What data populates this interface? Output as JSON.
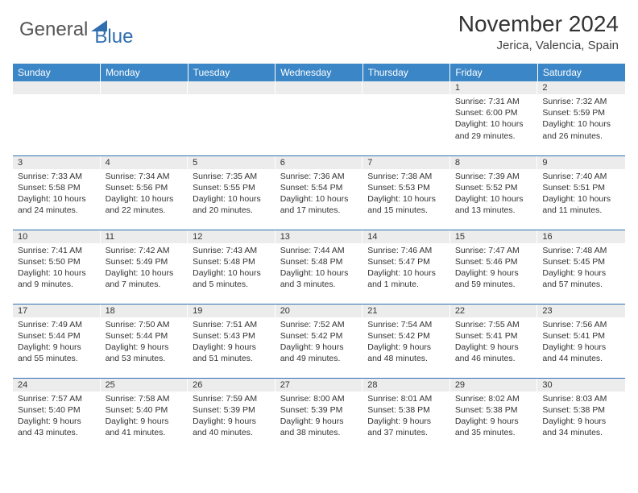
{
  "logo": {
    "part1": "General",
    "part2": "Blue"
  },
  "title": "November 2024",
  "location": "Jerica, Valencia, Spain",
  "colors": {
    "header_bg": "#3b86c6",
    "header_text": "#ffffff",
    "daynum_bg": "#ececec",
    "border": "#2f6fb0",
    "logo_accent": "#2f6fb0"
  },
  "weekdays": [
    "Sunday",
    "Monday",
    "Tuesday",
    "Wednesday",
    "Thursday",
    "Friday",
    "Saturday"
  ],
  "weeks": [
    [
      {
        "n": "",
        "sr": "",
        "ss": "",
        "dl": ""
      },
      {
        "n": "",
        "sr": "",
        "ss": "",
        "dl": ""
      },
      {
        "n": "",
        "sr": "",
        "ss": "",
        "dl": ""
      },
      {
        "n": "",
        "sr": "",
        "ss": "",
        "dl": ""
      },
      {
        "n": "",
        "sr": "",
        "ss": "",
        "dl": ""
      },
      {
        "n": "1",
        "sr": "Sunrise: 7:31 AM",
        "ss": "Sunset: 6:00 PM",
        "dl": "Daylight: 10 hours and 29 minutes."
      },
      {
        "n": "2",
        "sr": "Sunrise: 7:32 AM",
        "ss": "Sunset: 5:59 PM",
        "dl": "Daylight: 10 hours and 26 minutes."
      }
    ],
    [
      {
        "n": "3",
        "sr": "Sunrise: 7:33 AM",
        "ss": "Sunset: 5:58 PM",
        "dl": "Daylight: 10 hours and 24 minutes."
      },
      {
        "n": "4",
        "sr": "Sunrise: 7:34 AM",
        "ss": "Sunset: 5:56 PM",
        "dl": "Daylight: 10 hours and 22 minutes."
      },
      {
        "n": "5",
        "sr": "Sunrise: 7:35 AM",
        "ss": "Sunset: 5:55 PM",
        "dl": "Daylight: 10 hours and 20 minutes."
      },
      {
        "n": "6",
        "sr": "Sunrise: 7:36 AM",
        "ss": "Sunset: 5:54 PM",
        "dl": "Daylight: 10 hours and 17 minutes."
      },
      {
        "n": "7",
        "sr": "Sunrise: 7:38 AM",
        "ss": "Sunset: 5:53 PM",
        "dl": "Daylight: 10 hours and 15 minutes."
      },
      {
        "n": "8",
        "sr": "Sunrise: 7:39 AM",
        "ss": "Sunset: 5:52 PM",
        "dl": "Daylight: 10 hours and 13 minutes."
      },
      {
        "n": "9",
        "sr": "Sunrise: 7:40 AM",
        "ss": "Sunset: 5:51 PM",
        "dl": "Daylight: 10 hours and 11 minutes."
      }
    ],
    [
      {
        "n": "10",
        "sr": "Sunrise: 7:41 AM",
        "ss": "Sunset: 5:50 PM",
        "dl": "Daylight: 10 hours and 9 minutes."
      },
      {
        "n": "11",
        "sr": "Sunrise: 7:42 AM",
        "ss": "Sunset: 5:49 PM",
        "dl": "Daylight: 10 hours and 7 minutes."
      },
      {
        "n": "12",
        "sr": "Sunrise: 7:43 AM",
        "ss": "Sunset: 5:48 PM",
        "dl": "Daylight: 10 hours and 5 minutes."
      },
      {
        "n": "13",
        "sr": "Sunrise: 7:44 AM",
        "ss": "Sunset: 5:48 PM",
        "dl": "Daylight: 10 hours and 3 minutes."
      },
      {
        "n": "14",
        "sr": "Sunrise: 7:46 AM",
        "ss": "Sunset: 5:47 PM",
        "dl": "Daylight: 10 hours and 1 minute."
      },
      {
        "n": "15",
        "sr": "Sunrise: 7:47 AM",
        "ss": "Sunset: 5:46 PM",
        "dl": "Daylight: 9 hours and 59 minutes."
      },
      {
        "n": "16",
        "sr": "Sunrise: 7:48 AM",
        "ss": "Sunset: 5:45 PM",
        "dl": "Daylight: 9 hours and 57 minutes."
      }
    ],
    [
      {
        "n": "17",
        "sr": "Sunrise: 7:49 AM",
        "ss": "Sunset: 5:44 PM",
        "dl": "Daylight: 9 hours and 55 minutes."
      },
      {
        "n": "18",
        "sr": "Sunrise: 7:50 AM",
        "ss": "Sunset: 5:44 PM",
        "dl": "Daylight: 9 hours and 53 minutes."
      },
      {
        "n": "19",
        "sr": "Sunrise: 7:51 AM",
        "ss": "Sunset: 5:43 PM",
        "dl": "Daylight: 9 hours and 51 minutes."
      },
      {
        "n": "20",
        "sr": "Sunrise: 7:52 AM",
        "ss": "Sunset: 5:42 PM",
        "dl": "Daylight: 9 hours and 49 minutes."
      },
      {
        "n": "21",
        "sr": "Sunrise: 7:54 AM",
        "ss": "Sunset: 5:42 PM",
        "dl": "Daylight: 9 hours and 48 minutes."
      },
      {
        "n": "22",
        "sr": "Sunrise: 7:55 AM",
        "ss": "Sunset: 5:41 PM",
        "dl": "Daylight: 9 hours and 46 minutes."
      },
      {
        "n": "23",
        "sr": "Sunrise: 7:56 AM",
        "ss": "Sunset: 5:41 PM",
        "dl": "Daylight: 9 hours and 44 minutes."
      }
    ],
    [
      {
        "n": "24",
        "sr": "Sunrise: 7:57 AM",
        "ss": "Sunset: 5:40 PM",
        "dl": "Daylight: 9 hours and 43 minutes."
      },
      {
        "n": "25",
        "sr": "Sunrise: 7:58 AM",
        "ss": "Sunset: 5:40 PM",
        "dl": "Daylight: 9 hours and 41 minutes."
      },
      {
        "n": "26",
        "sr": "Sunrise: 7:59 AM",
        "ss": "Sunset: 5:39 PM",
        "dl": "Daylight: 9 hours and 40 minutes."
      },
      {
        "n": "27",
        "sr": "Sunrise: 8:00 AM",
        "ss": "Sunset: 5:39 PM",
        "dl": "Daylight: 9 hours and 38 minutes."
      },
      {
        "n": "28",
        "sr": "Sunrise: 8:01 AM",
        "ss": "Sunset: 5:38 PM",
        "dl": "Daylight: 9 hours and 37 minutes."
      },
      {
        "n": "29",
        "sr": "Sunrise: 8:02 AM",
        "ss": "Sunset: 5:38 PM",
        "dl": "Daylight: 9 hours and 35 minutes."
      },
      {
        "n": "30",
        "sr": "Sunrise: 8:03 AM",
        "ss": "Sunset: 5:38 PM",
        "dl": "Daylight: 9 hours and 34 minutes."
      }
    ]
  ]
}
